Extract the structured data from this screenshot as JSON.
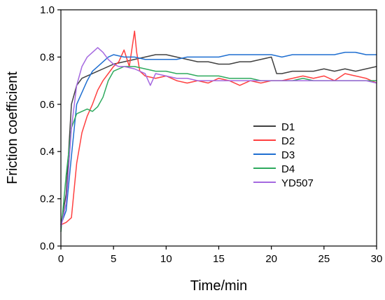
{
  "chart_data": {
    "type": "line",
    "title": "",
    "xlabel": "Time/min",
    "ylabel": "Friction coefficient",
    "xlim": [
      0,
      30
    ],
    "ylim": [
      0.0,
      1.0
    ],
    "x_ticks": [
      0,
      5,
      10,
      15,
      20,
      25,
      30
    ],
    "y_ticks": [
      0.0,
      0.2,
      0.4,
      0.6,
      0.8,
      1.0
    ],
    "x_tick_labels": [
      "0",
      "5",
      "10",
      "15",
      "20",
      "25",
      "30"
    ],
    "y_tick_labels": [
      "0.0",
      "0.2",
      "0.4",
      "0.6",
      "0.8",
      "1.0"
    ],
    "grid": false,
    "legend_position": "right",
    "series": [
      {
        "name": "D1",
        "color": "#404040",
        "x": [
          0,
          0.5,
          1,
          1.5,
          2,
          2.5,
          3,
          3.5,
          4,
          5,
          6,
          7,
          8,
          9,
          10,
          11,
          12,
          13,
          14,
          15,
          16,
          17,
          18,
          19,
          20,
          20.5,
          21,
          22,
          23,
          24,
          25,
          26,
          27,
          28,
          29,
          30
        ],
        "y": [
          0.09,
          0.22,
          0.6,
          0.68,
          0.71,
          0.72,
          0.73,
          0.74,
          0.75,
          0.77,
          0.78,
          0.79,
          0.8,
          0.81,
          0.81,
          0.8,
          0.79,
          0.78,
          0.78,
          0.77,
          0.77,
          0.78,
          0.78,
          0.79,
          0.8,
          0.73,
          0.73,
          0.74,
          0.74,
          0.74,
          0.75,
          0.74,
          0.75,
          0.74,
          0.75,
          0.76
        ]
      },
      {
        "name": "D2",
        "color": "#ff4040",
        "x": [
          0,
          0.5,
          1,
          1.5,
          2,
          2.5,
          3,
          3.5,
          4,
          4.5,
          5,
          5.5,
          6,
          6.5,
          7,
          7.2,
          7.5,
          8,
          9,
          10,
          11,
          12,
          13,
          14,
          15,
          16,
          17,
          18,
          19,
          20,
          21,
          22,
          23,
          24,
          25,
          26,
          27,
          28,
          29,
          30
        ],
        "y": [
          0.09,
          0.1,
          0.12,
          0.35,
          0.48,
          0.55,
          0.6,
          0.66,
          0.7,
          0.73,
          0.76,
          0.78,
          0.83,
          0.76,
          0.91,
          0.82,
          0.74,
          0.72,
          0.71,
          0.72,
          0.7,
          0.69,
          0.7,
          0.69,
          0.71,
          0.7,
          0.68,
          0.7,
          0.69,
          0.7,
          0.7,
          0.71,
          0.72,
          0.71,
          0.72,
          0.7,
          0.73,
          0.72,
          0.71,
          0.69
        ]
      },
      {
        "name": "D3",
        "color": "#1f6fd1",
        "x": [
          0,
          0.5,
          1,
          1.5,
          2,
          2.5,
          3,
          3.5,
          4,
          4.5,
          5,
          6,
          7,
          8,
          9,
          10,
          11,
          12,
          13,
          14,
          15,
          16,
          17,
          18,
          19,
          20,
          21,
          22,
          23,
          24,
          25,
          26,
          27,
          28,
          29,
          30
        ],
        "y": [
          0.09,
          0.15,
          0.38,
          0.6,
          0.65,
          0.7,
          0.74,
          0.76,
          0.78,
          0.8,
          0.81,
          0.8,
          0.8,
          0.79,
          0.79,
          0.79,
          0.79,
          0.8,
          0.8,
          0.8,
          0.8,
          0.81,
          0.81,
          0.81,
          0.81,
          0.81,
          0.8,
          0.81,
          0.81,
          0.81,
          0.81,
          0.81,
          0.82,
          0.82,
          0.81,
          0.81
        ]
      },
      {
        "name": "D4",
        "color": "#2eaa5e",
        "x": [
          0,
          0.5,
          1,
          1.5,
          2,
          2.5,
          3,
          3.5,
          4,
          4.5,
          5,
          5.5,
          6,
          7,
          8,
          9,
          10,
          11,
          12,
          13,
          14,
          15,
          16,
          17,
          18,
          19,
          20,
          21,
          22,
          23,
          24,
          25,
          26,
          27,
          28,
          29,
          30
        ],
        "y": [
          0.06,
          0.3,
          0.5,
          0.56,
          0.57,
          0.58,
          0.57,
          0.59,
          0.63,
          0.7,
          0.74,
          0.75,
          0.76,
          0.76,
          0.75,
          0.74,
          0.74,
          0.73,
          0.73,
          0.72,
          0.72,
          0.72,
          0.71,
          0.71,
          0.71,
          0.7,
          0.7,
          0.7,
          0.7,
          0.71,
          0.7,
          0.7,
          0.7,
          0.7,
          0.7,
          0.7,
          0.7
        ]
      },
      {
        "name": "YD507",
        "color": "#a569e0",
        "x": [
          0,
          0.5,
          1,
          1.5,
          2,
          2.5,
          3,
          3.5,
          4,
          4.5,
          5,
          5.5,
          6,
          7,
          8,
          8.5,
          9,
          10,
          11,
          12,
          13,
          14,
          15,
          16,
          17,
          18,
          19,
          20,
          21,
          22,
          23,
          24,
          25,
          26,
          27,
          28,
          29,
          30
        ],
        "y": [
          0.08,
          0.18,
          0.5,
          0.68,
          0.76,
          0.8,
          0.82,
          0.84,
          0.82,
          0.79,
          0.77,
          0.76,
          0.76,
          0.75,
          0.73,
          0.68,
          0.73,
          0.72,
          0.71,
          0.71,
          0.7,
          0.7,
          0.7,
          0.7,
          0.7,
          0.7,
          0.7,
          0.7,
          0.7,
          0.7,
          0.7,
          0.7,
          0.7,
          0.7,
          0.7,
          0.7,
          0.7,
          0.69
        ]
      }
    ]
  }
}
